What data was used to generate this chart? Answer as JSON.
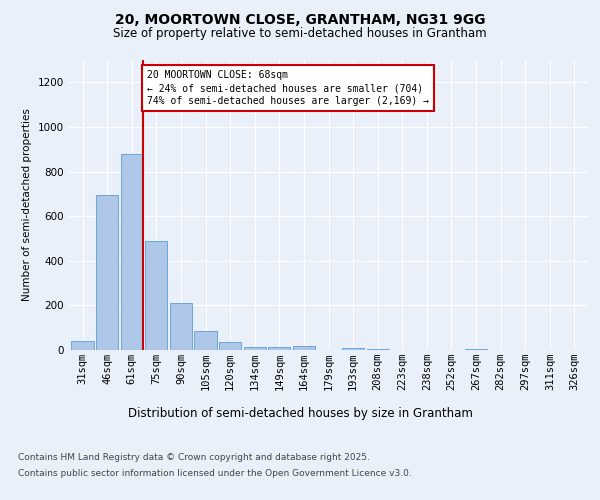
{
  "title1": "20, MOORTOWN CLOSE, GRANTHAM, NG31 9GG",
  "title2": "Size of property relative to semi-detached houses in Grantham",
  "xlabel": "Distribution of semi-detached houses by size in Grantham",
  "ylabel": "Number of semi-detached properties",
  "categories": [
    "31sqm",
    "46sqm",
    "61sqm",
    "75sqm",
    "90sqm",
    "105sqm",
    "120sqm",
    "134sqm",
    "149sqm",
    "164sqm",
    "179sqm",
    "193sqm",
    "208sqm",
    "223sqm",
    "238sqm",
    "252sqm",
    "267sqm",
    "282sqm",
    "297sqm",
    "311sqm",
    "326sqm"
  ],
  "values": [
    40,
    695,
    880,
    490,
    210,
    85,
    35,
    15,
    15,
    20,
    0,
    10,
    5,
    2,
    1,
    0,
    5,
    0,
    0,
    0,
    2
  ],
  "bar_color": "#aec6e8",
  "bar_edge_color": "#5a9fd4",
  "property_label": "20 MOORTOWN CLOSE: 68sqm",
  "pct_smaller": "24%",
  "pct_smaller_n": "704",
  "pct_larger": "74%",
  "pct_larger_n": "2,169",
  "vline_x": 2.47,
  "bg_color": "#eaf0fa",
  "plot_bg_color": "#eaf0fa",
  "ylim": [
    0,
    1300
  ],
  "yticks": [
    0,
    200,
    400,
    600,
    800,
    1000,
    1200
  ],
  "footer1": "Contains HM Land Registry data © Crown copyright and database right 2025.",
  "footer2": "Contains public sector information licensed under the Open Government Licence v3.0.",
  "annotation_box_color": "#cc0000",
  "title1_fontsize": 10,
  "title2_fontsize": 8.5,
  "ylabel_fontsize": 7.5,
  "xlabel_fontsize": 8.5,
  "tick_fontsize": 7.5,
  "footer_fontsize": 6.5
}
